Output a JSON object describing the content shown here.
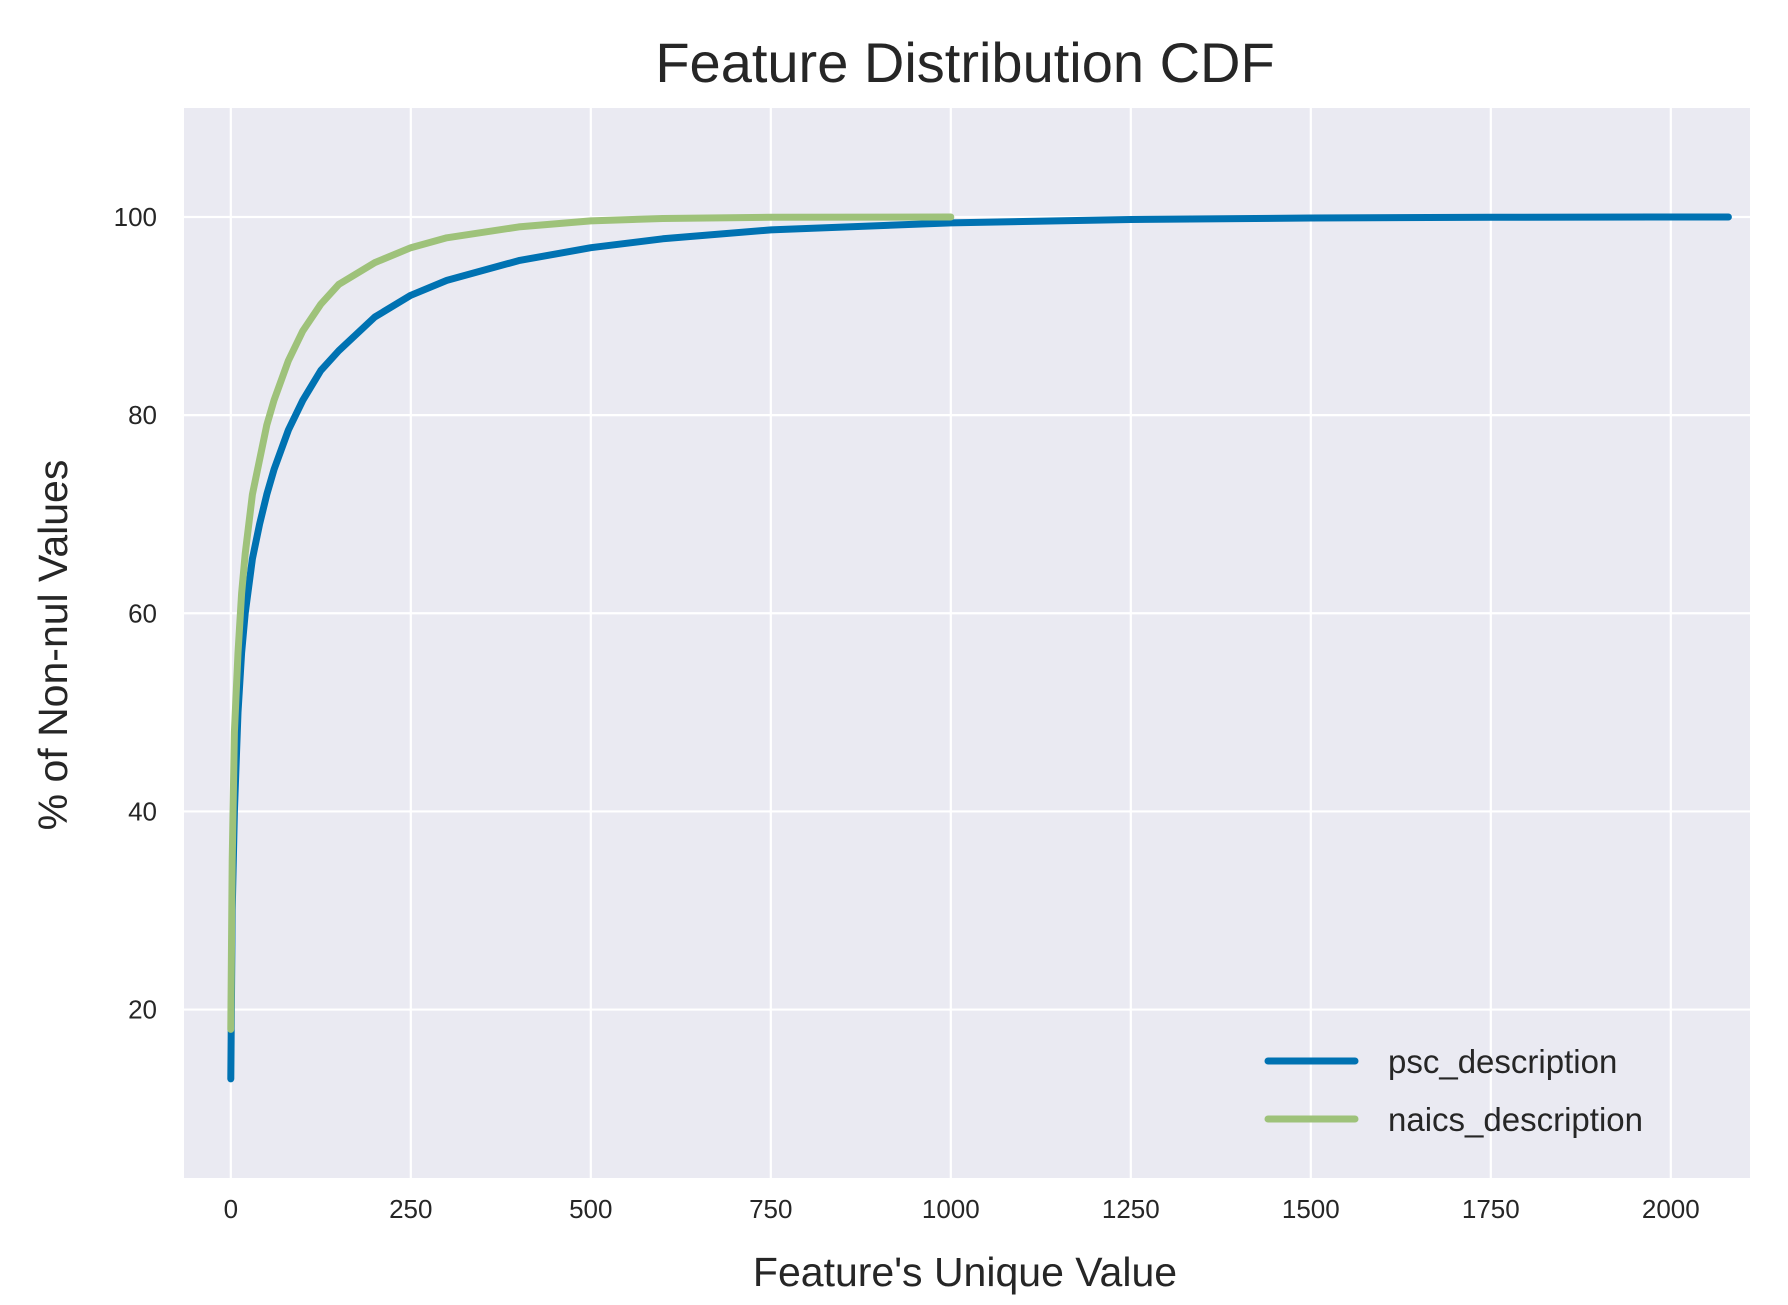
{
  "chart_data": {
    "type": "line",
    "title": "Feature Distribution CDF",
    "xlabel": "Feature's Unique Value",
    "ylabel": "% of Non-nul Values",
    "xlim": [
      -65,
      2110
    ],
    "ylim": [
      3,
      111
    ],
    "xticks": [
      0,
      250,
      500,
      750,
      1000,
      1250,
      1500,
      1750,
      2000
    ],
    "yticks": [
      20,
      40,
      60,
      80,
      100
    ],
    "grid": true,
    "background": "#eaeaf2",
    "grid_color": "#ffffff",
    "legend_position": "lower-right",
    "series": [
      {
        "name": "psc_description",
        "color": "#0072b2",
        "x": [
          0,
          2,
          5,
          10,
          15,
          20,
          30,
          40,
          50,
          60,
          80,
          100,
          125,
          150,
          200,
          250,
          300,
          400,
          500,
          600,
          750,
          1000,
          1250,
          1500,
          1750,
          2000,
          2080
        ],
        "y": [
          13,
          30,
          40,
          50,
          56,
          60,
          65.5,
          69,
          72,
          74.5,
          78.5,
          81.5,
          84.5,
          86.5,
          89.9,
          92.1,
          93.6,
          95.6,
          96.9,
          97.8,
          98.7,
          99.4,
          99.75,
          99.9,
          99.97,
          100,
          100
        ]
      },
      {
        "name": "naics_description",
        "color": "#9ec27a",
        "x": [
          0,
          2,
          5,
          10,
          15,
          20,
          30,
          40,
          50,
          60,
          80,
          100,
          125,
          150,
          200,
          250,
          300,
          400,
          500,
          600,
          750,
          1000
        ],
        "y": [
          18,
          35,
          48,
          56,
          62,
          66,
          72,
          75.5,
          79,
          81.5,
          85.5,
          88.5,
          91.2,
          93.2,
          95.4,
          96.9,
          97.9,
          99.0,
          99.6,
          99.85,
          99.97,
          100
        ]
      }
    ]
  }
}
